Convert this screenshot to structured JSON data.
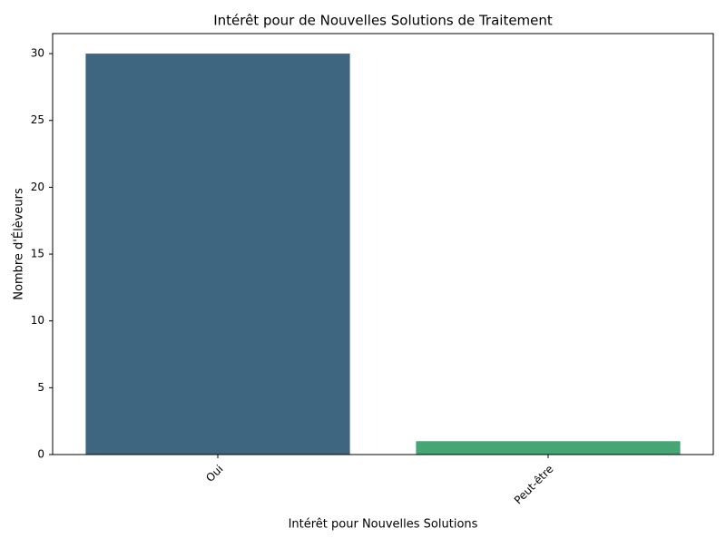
{
  "chart_data": {
    "type": "bar",
    "title": "Intérêt pour de Nouvelles Solutions de Traitement",
    "x_label": "Intérêt pour Nouvelles Solutions",
    "y_label": "Nombre d'Élèveurs",
    "categories": [
      "Oui",
      "Peut-être"
    ],
    "values": [
      30,
      1
    ],
    "colors": [
      "#3e6680",
      "#45a573"
    ],
    "ylim": [
      0,
      31.5
    ],
    "yticks": [
      0,
      5,
      10,
      15,
      20,
      25,
      30
    ],
    "grid": false
  }
}
